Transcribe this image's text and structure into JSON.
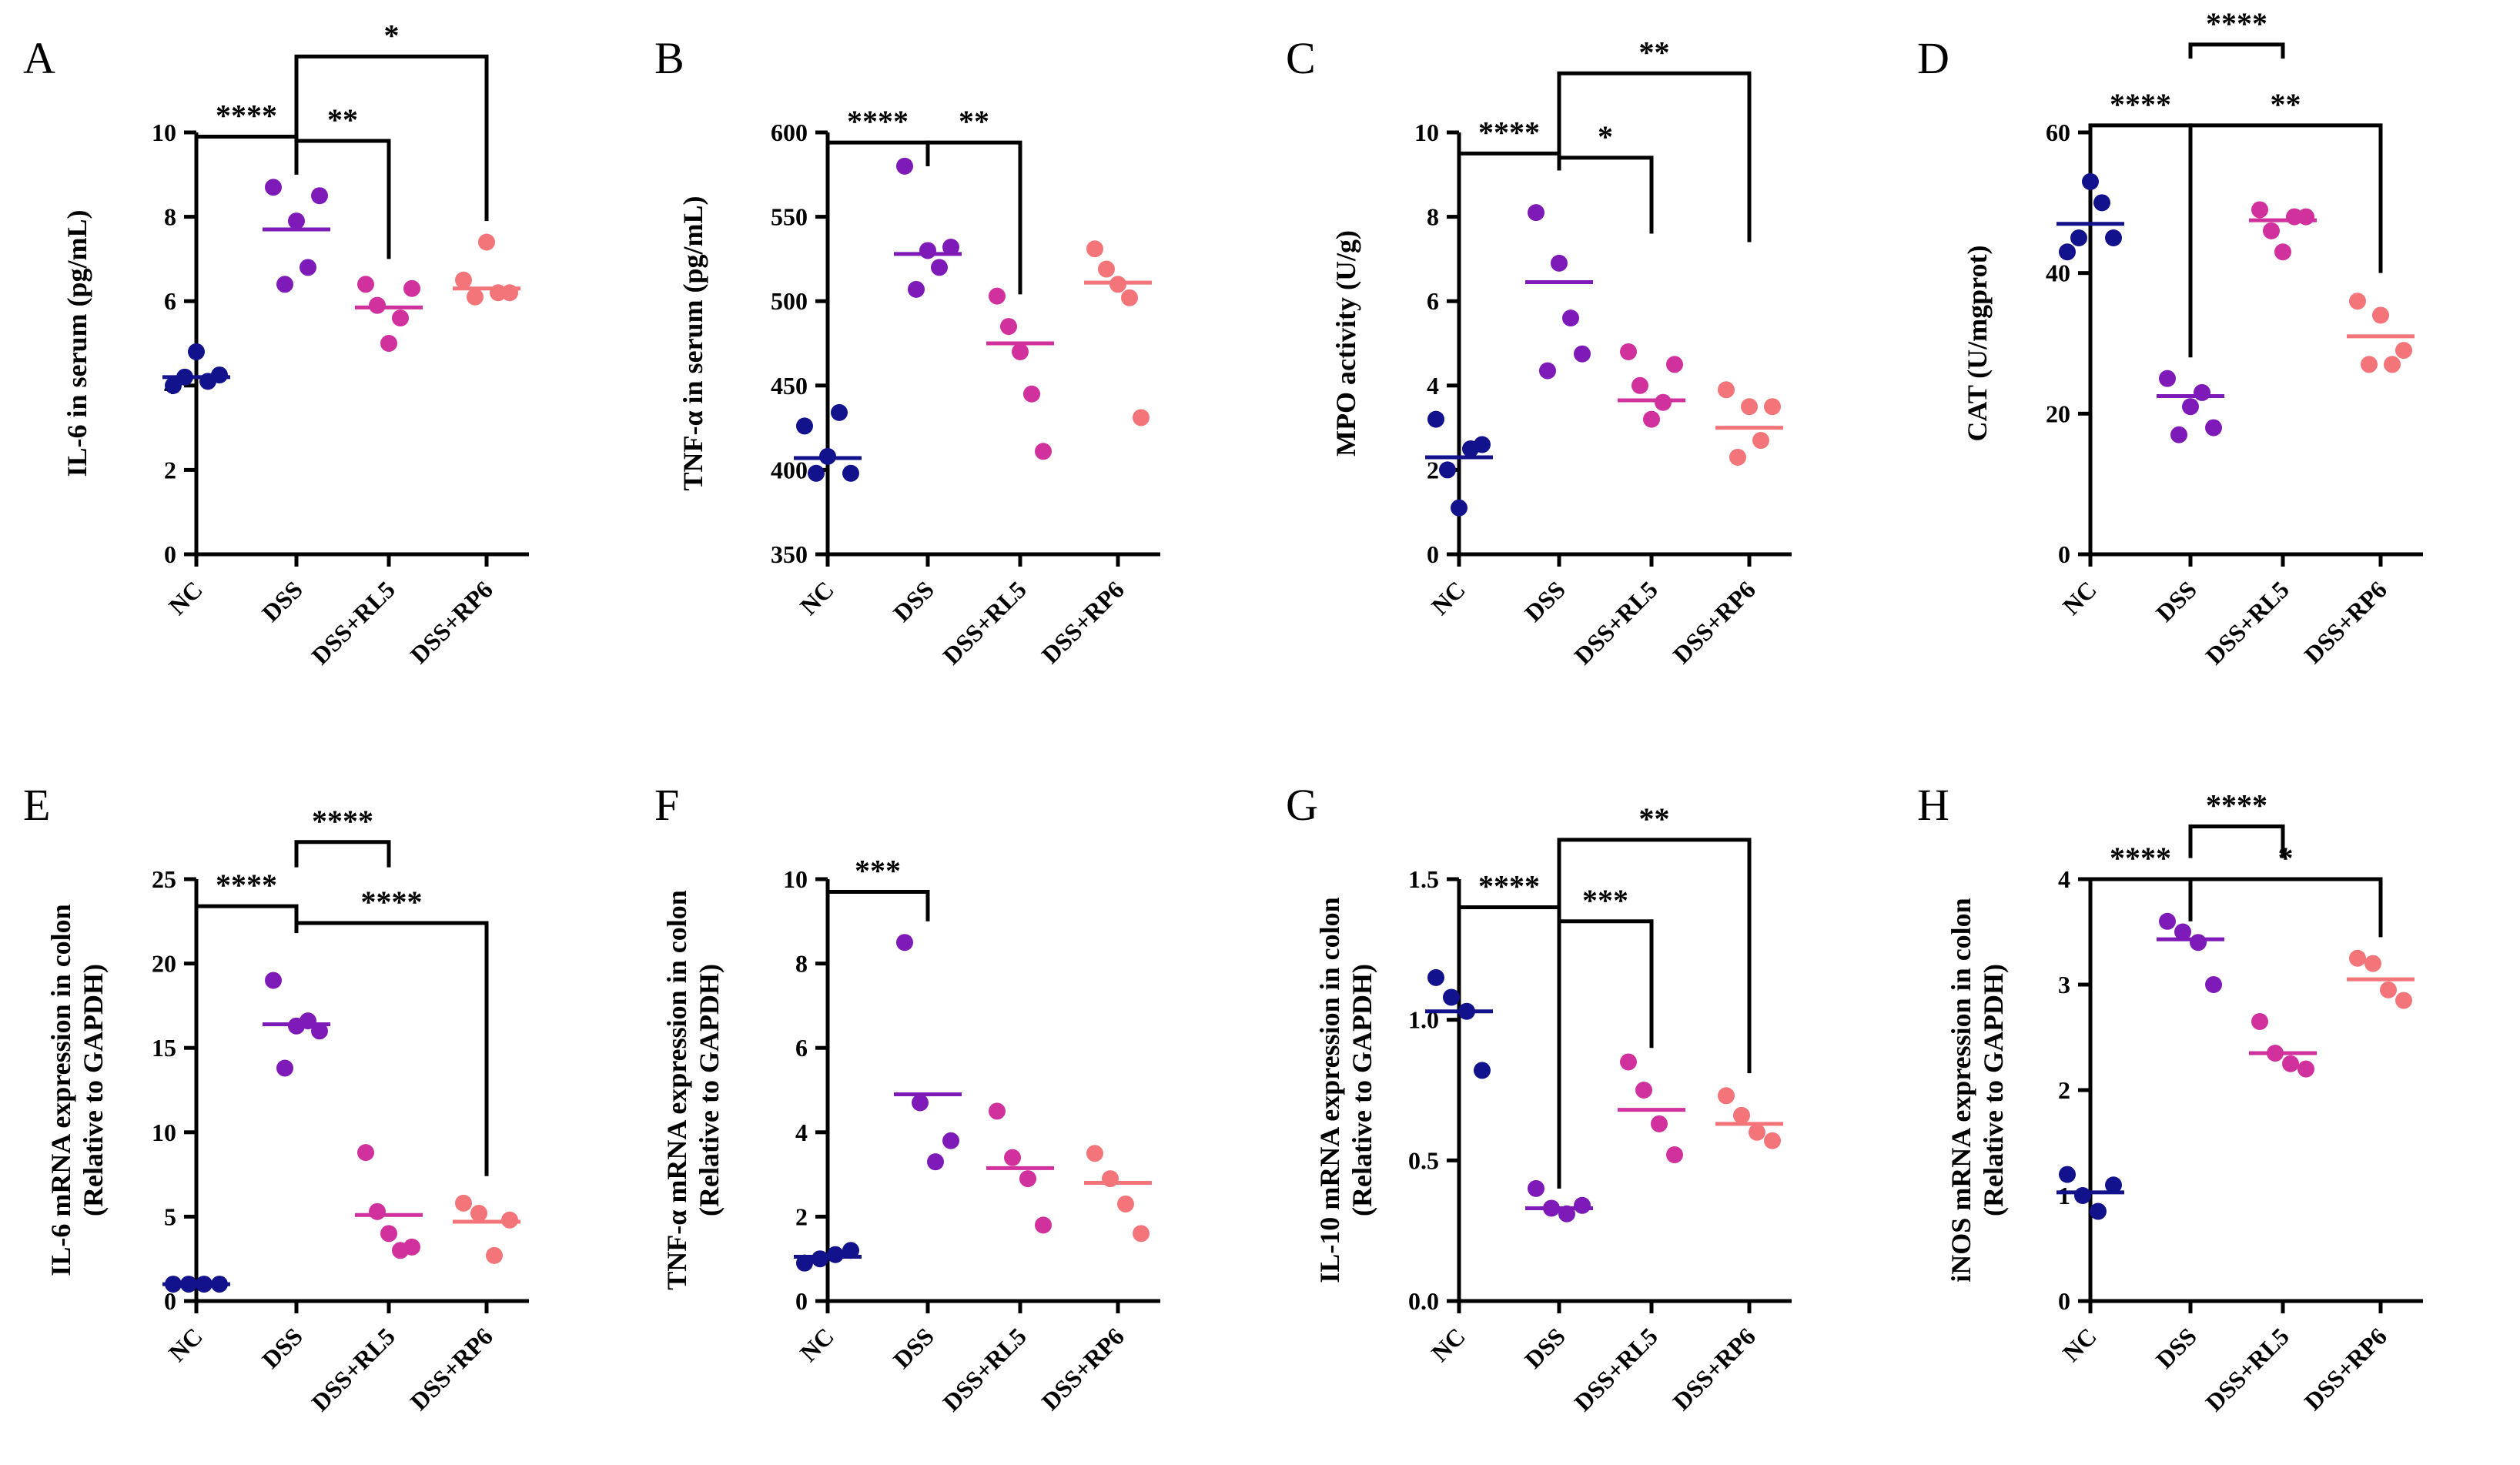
{
  "colors": {
    "NC": "#12128c",
    "DSS": "#7e1bb8",
    "DSS+RL5": "#d1319c",
    "DSS+RP6": "#f47579"
  },
  "chart_data": [
    {
      "panel": "A",
      "type": "scatter",
      "ylabel": [
        "IL-6 in serum (pg/mL)"
      ],
      "ylim": [
        0,
        10
      ],
      "yticks": [
        0,
        2,
        4,
        6,
        8,
        10
      ],
      "ytick_labels": [
        "0",
        "2",
        "4",
        "6",
        "8",
        "10"
      ],
      "categories": [
        "NC",
        "DSS",
        "DSS+RL5",
        "DSS+RP6"
      ],
      "points": [
        [
          4.0,
          4.2,
          4.8,
          4.1,
          4.25
        ],
        [
          8.7,
          6.4,
          7.9,
          6.8,
          8.5
        ],
        [
          6.4,
          5.9,
          5.0,
          5.6,
          6.3
        ],
        [
          6.5,
          6.1,
          7.4,
          6.2,
          6.2
        ]
      ],
      "means": [
        4.2,
        7.7,
        5.85,
        6.3
      ],
      "brackets": [
        {
          "from": 0,
          "to": 1,
          "y": 9.9,
          "label": "****",
          "drops": [
            0.6,
            0.9
          ]
        },
        {
          "from": 1,
          "to": 2,
          "y": 9.8,
          "label": "**",
          "drops": [
            0.8,
            2.8
          ]
        },
        {
          "from": 1,
          "to": 3,
          "y": 11.8,
          "label": "*",
          "drops": [
            2.4,
            3.9
          ]
        }
      ]
    },
    {
      "panel": "B",
      "type": "scatter",
      "ylabel": [
        "TNF-α in serum (pg/mL)"
      ],
      "ylim": [
        350,
        600
      ],
      "yticks": [
        350,
        400,
        450,
        500,
        550,
        600
      ],
      "ytick_labels": [
        "350",
        "400",
        "450",
        "500",
        "550",
        "600"
      ],
      "categories": [
        "NC",
        "DSS",
        "DSS+RL5",
        "DSS+RP6"
      ],
      "points": [
        [
          426,
          398,
          408,
          434,
          398
        ],
        [
          580,
          507,
          530,
          520,
          532
        ],
        [
          503,
          485,
          470,
          445,
          411
        ],
        [
          531,
          519,
          510,
          502,
          431
        ]
      ],
      "means": [
        407,
        528,
        475,
        511
      ],
      "brackets": [
        {
          "from": 0,
          "to": 1,
          "y": 594,
          "label": "****",
          "drops": [
            40,
            14
          ]
        },
        {
          "from": 1,
          "to": 2,
          "y": 594,
          "label": "**",
          "drops": [
            14,
            90
          ]
        }
      ]
    },
    {
      "panel": "C",
      "type": "scatter",
      "ylabel": [
        "MPO activity (U/g)"
      ],
      "ylim": [
        0,
        10
      ],
      "yticks": [
        0,
        2,
        4,
        6,
        8,
        10
      ],
      "ytick_labels": [
        "0",
        "2",
        "4",
        "6",
        "8",
        "10"
      ],
      "categories": [
        "NC",
        "DSS",
        "DSS+RL5",
        "DSS+RP6"
      ],
      "points": [
        [
          3.2,
          2.0,
          1.1,
          2.5,
          2.6
        ],
        [
          8.1,
          4.35,
          6.9,
          5.6,
          4.75
        ],
        [
          4.8,
          4.0,
          3.2,
          3.6,
          4.5
        ],
        [
          3.9,
          2.3,
          3.5,
          2.7,
          3.5
        ]
      ],
      "means": [
        2.3,
        6.45,
        3.65,
        3.0
      ],
      "brackets": [
        {
          "from": 0,
          "to": 1,
          "y": 9.5,
          "label": "****",
          "drops": [
            0.9,
            0.4
          ]
        },
        {
          "from": 1,
          "to": 2,
          "y": 9.4,
          "label": "*",
          "drops": [
            0.3,
            1.8
          ]
        },
        {
          "from": 1,
          "to": 3,
          "y": 11.4,
          "label": "**",
          "drops": [
            2.0,
            4.0
          ]
        }
      ]
    },
    {
      "panel": "D",
      "type": "scatter",
      "ylabel": [
        "CAT (U/mgprot)"
      ],
      "ylim": [
        0,
        60
      ],
      "yticks": [
        0,
        20,
        40,
        60
      ],
      "ytick_labels": [
        "0",
        "20",
        "40",
        "60"
      ],
      "categories": [
        "NC",
        "DSS",
        "DSS+RL5",
        "DSS+RP6"
      ],
      "points": [
        [
          43,
          45,
          53,
          50,
          45
        ],
        [
          25,
          17,
          21,
          23,
          18
        ],
        [
          49,
          46,
          43,
          48,
          48
        ],
        [
          36,
          27,
          34,
          27,
          29
        ]
      ],
      "means": [
        47,
        22.5,
        47.5,
        31
      ],
      "brackets": [
        {
          "from": 0,
          "to": 1,
          "y": 61,
          "label": "****",
          "drops": [
            5,
            33
          ]
        },
        {
          "from": 1,
          "to": 3,
          "y": 61,
          "label": "**",
          "drops": [
            30,
            21
          ]
        },
        {
          "from": 1,
          "to": 2,
          "y": 72.5,
          "label": "****",
          "drops": [
            2,
            2
          ]
        }
      ]
    },
    {
      "panel": "E",
      "type": "scatter",
      "ylabel": [
        "IL-6 mRNA expression in colon",
        "(Relative to GAPDH)"
      ],
      "ylim": [
        0,
        25
      ],
      "yticks": [
        0,
        5,
        10,
        15,
        20,
        25
      ],
      "ytick_labels": [
        "0",
        "5",
        "10",
        "15",
        "20",
        "25"
      ],
      "categories": [
        "NC",
        "DSS",
        "DSS+RL5",
        "DSS+RP6"
      ],
      "points": [
        [
          1.0,
          1.0,
          1.0,
          1.0
        ],
        [
          19.0,
          13.8,
          16.3,
          16.6,
          16.0
        ],
        [
          8.8,
          5.3,
          4.0,
          3.0,
          3.2
        ],
        [
          5.8,
          5.2,
          2.7,
          4.8
        ]
      ],
      "means": [
        1.0,
        16.4,
        5.1,
        4.7
      ],
      "brackets": [
        {
          "from": 0,
          "to": 1,
          "y": 23.4,
          "label": "****",
          "drops": [
            21.8,
            0.9
          ]
        },
        {
          "from": 1,
          "to": 3,
          "y": 22.4,
          "label": "****",
          "drops": [
            0.6,
            15
          ]
        },
        {
          "from": 1,
          "to": 2,
          "y": 27.2,
          "label": "****",
          "drops": [
            1.5,
            1.5
          ]
        }
      ]
    },
    {
      "panel": "F",
      "type": "scatter",
      "ylabel": [
        "TNF-α mRNA expression in colon",
        "(Relative to GAPDH)"
      ],
      "ylim": [
        0,
        10
      ],
      "yticks": [
        0,
        2,
        4,
        6,
        8,
        10
      ],
      "ytick_labels": [
        "0",
        "2",
        "4",
        "6",
        "8",
        "10"
      ],
      "categories": [
        "NC",
        "DSS",
        "DSS+RL5",
        "DSS+RP6"
      ],
      "points": [
        [
          0.9,
          1.0,
          1.1,
          1.2
        ],
        [
          8.5,
          4.7,
          3.3,
          3.8
        ],
        [
          4.5,
          3.4,
          2.9,
          1.8
        ],
        [
          3.5,
          2.9,
          2.3,
          1.6
        ]
      ],
      "means": [
        1.05,
        4.9,
        3.15,
        2.8
      ],
      "brackets": [
        {
          "from": 0,
          "to": 1,
          "y": 9.7,
          "label": "***",
          "drops": [
            8.0,
            0.7
          ]
        }
      ]
    },
    {
      "panel": "G",
      "type": "scatter",
      "ylabel": [
        "IL-10 mRNA expression in colon",
        "(Relative to GAPDH)"
      ],
      "ylim": [
        0,
        1.5
      ],
      "yticks": [
        0,
        0.5,
        1.0,
        1.5
      ],
      "ytick_labels": [
        "0.0",
        "0.5",
        "1.0",
        "1.5"
      ],
      "categories": [
        "NC",
        "DSS",
        "DSS+RL5",
        "DSS+RP6"
      ],
      "points": [
        [
          1.15,
          1.08,
          1.03,
          0.82
        ],
        [
          0.4,
          0.33,
          0.31,
          0.34
        ],
        [
          0.85,
          0.75,
          0.63,
          0.52
        ],
        [
          0.73,
          0.66,
          0.6,
          0.57
        ]
      ],
      "means": [
        1.03,
        0.33,
        0.68,
        0.63
      ],
      "brackets": [
        {
          "from": 0,
          "to": 1,
          "y": 1.4,
          "label": "****",
          "drops": [
            0.2,
            1.0
          ]
        },
        {
          "from": 1,
          "to": 2,
          "y": 1.35,
          "label": "***",
          "drops": [
            0.95,
            0.45
          ]
        },
        {
          "from": 1,
          "to": 3,
          "y": 1.64,
          "label": "**",
          "drops": [
            1.2,
            0.83
          ]
        }
      ]
    },
    {
      "panel": "H",
      "type": "scatter",
      "ylabel": [
        "iNOS mRNA expression in colon",
        "(Relative to GAPDH)"
      ],
      "ylim": [
        0,
        4
      ],
      "yticks": [
        0,
        1,
        2,
        3,
        4
      ],
      "ytick_labels": [
        "0",
        "1",
        "2",
        "3",
        "4"
      ],
      "categories": [
        "NC",
        "DSS",
        "DSS+RL5",
        "DSS+RP6"
      ],
      "points": [
        [
          1.2,
          1.0,
          0.85,
          1.1
        ],
        [
          3.6,
          3.5,
          3.4,
          3.0
        ],
        [
          2.65,
          2.35,
          2.25,
          2.2
        ],
        [
          3.25,
          3.2,
          2.95,
          2.85
        ]
      ],
      "means": [
        1.03,
        3.43,
        2.35,
        3.05
      ],
      "brackets": [
        {
          "from": 0,
          "to": 1,
          "y": 4.0,
          "label": "****",
          "drops": [
            2.7,
            0.3
          ]
        },
        {
          "from": 1,
          "to": 3,
          "y": 4.0,
          "label": "*",
          "drops": [
            0.4,
            0.55
          ]
        },
        {
          "from": 1,
          "to": 2,
          "y": 4.5,
          "label": "****",
          "drops": [
            0.3,
            0.3
          ]
        }
      ]
    }
  ]
}
